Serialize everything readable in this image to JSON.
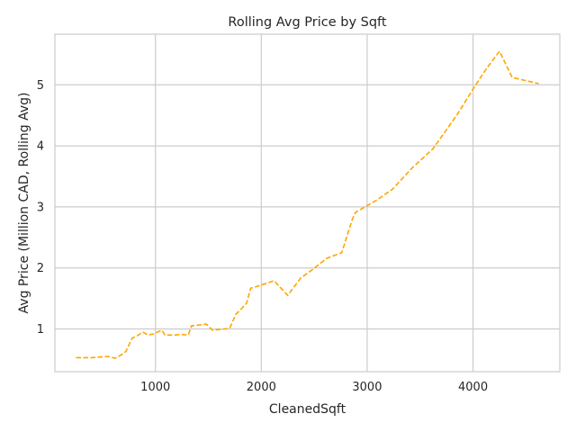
{
  "chart_data": {
    "type": "line",
    "title": "Rolling Avg Price by Sqft",
    "xlabel": "CleanedSqft",
    "ylabel": "Avg Price (Million CAD, Rolling Avg)",
    "xlim": [
      50,
      4820
    ],
    "ylim": [
      0.3,
      5.83
    ],
    "xticks": [
      1000,
      2000,
      3000,
      4000
    ],
    "xtick_labels": [
      "1000",
      "2000",
      "3000",
      "4000"
    ],
    "yticks": [
      1,
      2,
      3,
      4,
      5
    ],
    "ytick_labels": [
      "1",
      "2",
      "3",
      "4",
      "5"
    ],
    "grid": true,
    "legend": "none",
    "line_color": "#ffa500",
    "line_style": "dashed",
    "series": [
      {
        "x": [
          250,
          400,
          550,
          620,
          680,
          720,
          780,
          830,
          880,
          930,
          980,
          1060,
          1090,
          1180,
          1240,
          1310,
          1340,
          1480,
          1540,
          1700,
          1760,
          1860,
          1900,
          1930,
          2120,
          2250,
          2370,
          2480,
          2620,
          2760,
          2860,
          2890,
          3080,
          3240,
          3420,
          3620,
          3850,
          4000,
          4120,
          4250,
          4370,
          4620
        ],
        "y": [
          0.53,
          0.53,
          0.55,
          0.52,
          0.58,
          0.63,
          0.85,
          0.89,
          0.95,
          0.9,
          0.92,
          0.98,
          0.9,
          0.9,
          0.91,
          0.9,
          1.05,
          1.08,
          0.98,
          1.01,
          1.24,
          1.42,
          1.67,
          1.68,
          1.79,
          1.55,
          1.83,
          1.97,
          2.16,
          2.25,
          2.8,
          2.91,
          3.1,
          3.29,
          3.63,
          3.95,
          4.51,
          4.93,
          5.25,
          5.55,
          5.12,
          5.02
        ]
      }
    ]
  }
}
